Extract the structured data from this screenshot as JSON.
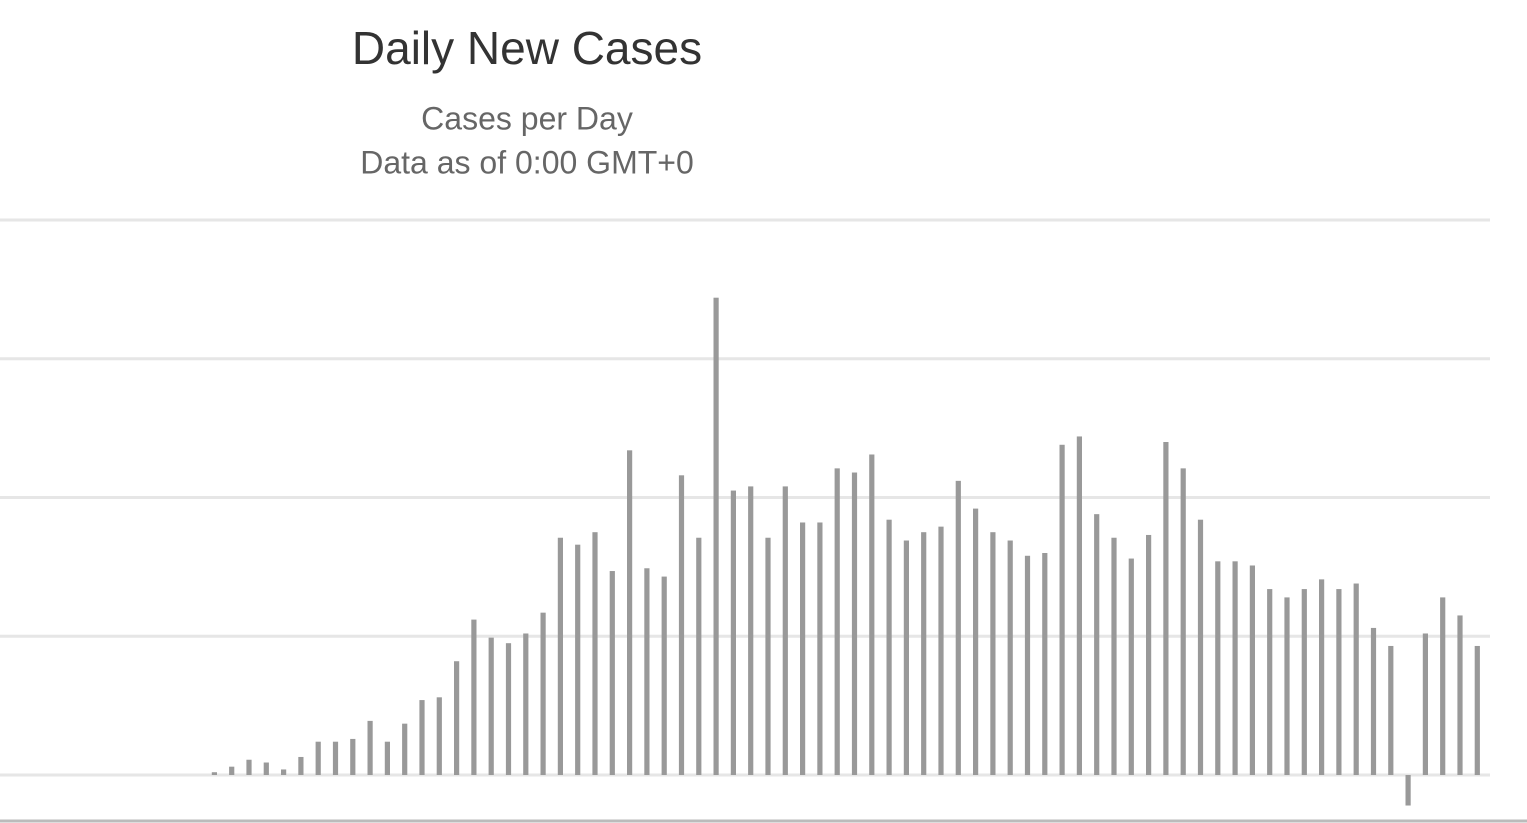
{
  "chart_data": {
    "type": "bar",
    "title": "Daily New Cases",
    "subtitle": [
      "Cases per Day",
      "Data as of 0:00 GMT+0"
    ],
    "values": [
      0,
      0,
      0,
      0,
      0,
      0,
      0,
      0,
      0.02,
      0.06,
      0.11,
      0.09,
      0.04,
      0.13,
      0.24,
      0.24,
      0.26,
      0.39,
      0.24,
      0.37,
      0.54,
      0.56,
      0.82,
      1.12,
      0.99,
      0.95,
      1.02,
      1.17,
      1.71,
      1.66,
      1.75,
      1.47,
      2.34,
      1.49,
      1.43,
      2.16,
      1.71,
      3.44,
      2.05,
      2.08,
      1.71,
      2.08,
      1.82,
      1.82,
      2.21,
      2.18,
      2.31,
      1.84,
      1.69,
      1.75,
      1.79,
      2.12,
      1.92,
      1.75,
      1.69,
      1.58,
      1.6,
      2.38,
      2.44,
      1.88,
      1.71,
      1.56,
      1.73,
      2.4,
      2.21,
      1.84,
      1.54,
      1.54,
      1.51,
      1.34,
      1.28,
      1.34,
      1.41,
      1.34,
      1.38,
      1.06,
      0.93,
      -0.22,
      1.02,
      1.28,
      1.15,
      0.93
    ],
    "color": "#999999",
    "ylim": [
      -0.3,
      4
    ],
    "yticks": [
      0,
      1,
      2,
      3,
      4
    ],
    "grid": true
  }
}
